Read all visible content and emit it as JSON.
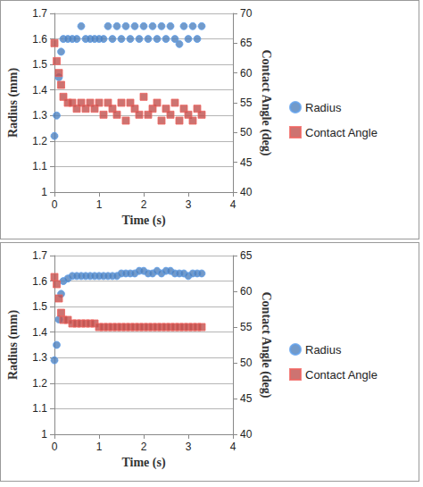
{
  "chart_data": [
    {
      "type": "scatter",
      "x_label": "Time (s)",
      "y_label": "Radius (mm)",
      "y2_label": "Contact Angle (deg)",
      "x": [
        0,
        0.05,
        0.1,
        0.15,
        0.2,
        0.3,
        0.4,
        0.5,
        0.6,
        0.7,
        0.8,
        0.9,
        1.0,
        1.1,
        1.2,
        1.3,
        1.4,
        1.5,
        1.6,
        1.7,
        1.8,
        1.9,
        2.0,
        2.1,
        2.2,
        2.3,
        2.4,
        2.5,
        2.6,
        2.7,
        2.8,
        2.9,
        3.0,
        3.1,
        3.2,
        3.3
      ],
      "series": [
        {
          "name": "Radius",
          "color": "#4f81bd",
          "marker": "circle",
          "values": [
            1.22,
            1.3,
            1.45,
            1.55,
            1.6,
            1.6,
            1.6,
            1.6,
            1.65,
            1.6,
            1.6,
            1.6,
            1.6,
            1.6,
            1.65,
            1.6,
            1.65,
            1.6,
            1.65,
            1.6,
            1.65,
            1.6,
            1.65,
            1.6,
            1.65,
            1.6,
            1.65,
            1.6,
            1.65,
            1.6,
            1.58,
            1.65,
            1.6,
            1.65,
            1.6,
            1.65
          ]
        },
        {
          "name": "Contact Angle",
          "color": "#c0504d",
          "marker": "square",
          "axis": "y2",
          "values": [
            65,
            62,
            60,
            58,
            56,
            55,
            55,
            54,
            55,
            54,
            55,
            54,
            55,
            53,
            55,
            54,
            53,
            55,
            52,
            55,
            54,
            53,
            56,
            53,
            54,
            55,
            52,
            54,
            53,
            55,
            52,
            54,
            53,
            52,
            54,
            53
          ]
        }
      ],
      "xlim": [
        0,
        4
      ],
      "xticks": [
        0,
        1,
        2,
        3,
        4
      ],
      "ylim": [
        1,
        1.7
      ],
      "yticks": [
        1,
        1.1,
        1.2,
        1.3,
        1.4,
        1.5,
        1.6,
        1.7
      ],
      "y2lim": [
        40,
        70
      ],
      "y2ticks": [
        40,
        45,
        50,
        55,
        60,
        65,
        70
      ],
      "grid": true,
      "legend": "right"
    },
    {
      "type": "scatter",
      "x_label": "Time (s)",
      "y_label": "Radius (mm)",
      "y2_label": "Contact Angle (deg)",
      "x": [
        0,
        0.05,
        0.1,
        0.15,
        0.2,
        0.3,
        0.4,
        0.5,
        0.6,
        0.7,
        0.8,
        0.9,
        1.0,
        1.1,
        1.2,
        1.3,
        1.4,
        1.5,
        1.6,
        1.7,
        1.8,
        1.9,
        2.0,
        2.1,
        2.2,
        2.3,
        2.4,
        2.5,
        2.6,
        2.7,
        2.8,
        2.9,
        3.0,
        3.1,
        3.2,
        3.3
      ],
      "series": [
        {
          "name": "Radius",
          "color": "#4f81bd",
          "marker": "circle",
          "values": [
            1.29,
            1.35,
            1.45,
            1.55,
            1.6,
            1.61,
            1.62,
            1.62,
            1.62,
            1.62,
            1.62,
            1.62,
            1.62,
            1.62,
            1.62,
            1.62,
            1.62,
            1.63,
            1.63,
            1.63,
            1.63,
            1.64,
            1.64,
            1.63,
            1.63,
            1.64,
            1.63,
            1.64,
            1.64,
            1.63,
            1.63,
            1.63,
            1.62,
            1.63,
            1.63,
            1.63
          ]
        },
        {
          "name": "Contact Angle",
          "color": "#c0504d",
          "marker": "square",
          "axis": "y2",
          "values": [
            62,
            61,
            59,
            57,
            56,
            56,
            55.5,
            55.5,
            55.5,
            55.5,
            55.5,
            55.5,
            55,
            55,
            55,
            55,
            55,
            55,
            55,
            55,
            55,
            55,
            55,
            55,
            55,
            55,
            55,
            55,
            55,
            55,
            55,
            55,
            55,
            55,
            55,
            55
          ]
        }
      ],
      "xlim": [
        0,
        4
      ],
      "xticks": [
        0,
        1,
        2,
        3,
        4
      ],
      "ylim": [
        1,
        1.7
      ],
      "yticks": [
        1,
        1.1,
        1.2,
        1.3,
        1.4,
        1.5,
        1.6,
        1.7
      ],
      "y2lim": [
        40,
        65
      ],
      "y2ticks": [
        40,
        45,
        50,
        55,
        60,
        65
      ],
      "grid": true,
      "legend": "right"
    }
  ]
}
